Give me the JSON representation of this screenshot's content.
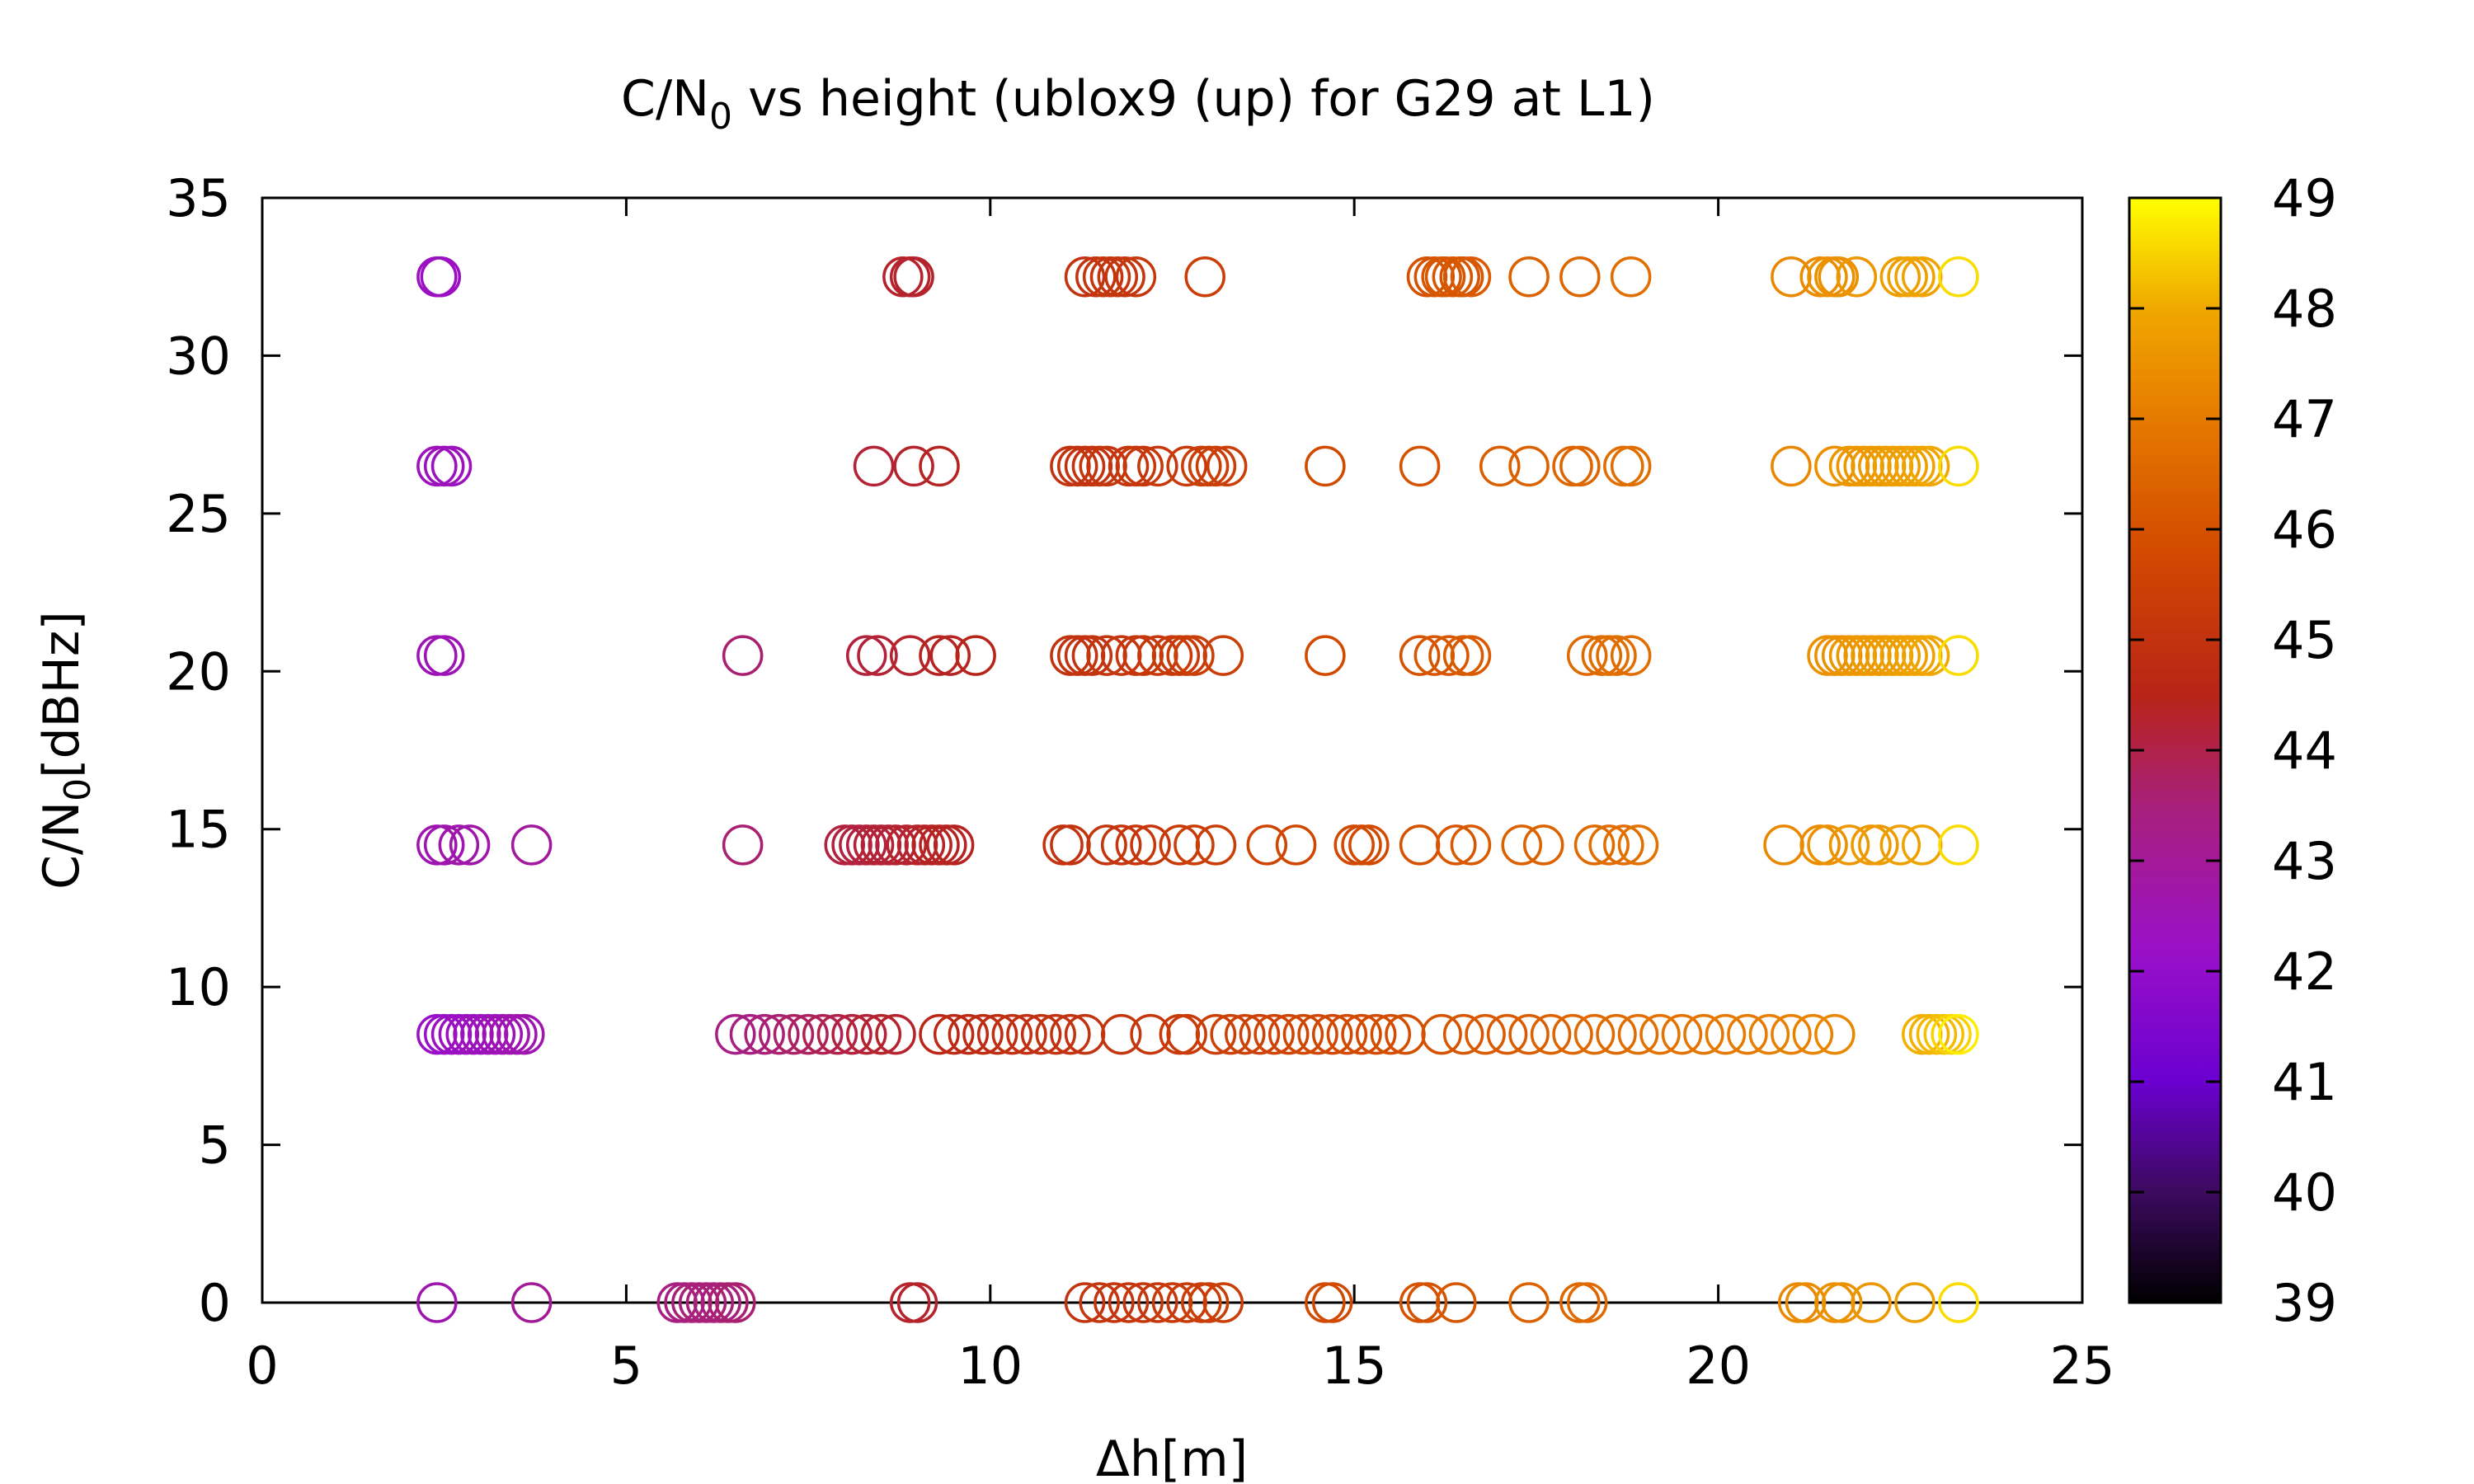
{
  "chart_data": {
    "type": "scatter",
    "title": {
      "pre": "C/N",
      "sub": "0",
      "post": " vs height (ublox9 (up) for G29 at L1)"
    },
    "xlabel": "Δh[m]",
    "ylabel": {
      "pre": "C/N",
      "sub": "0",
      "post": "[dBHz]"
    },
    "xlim": [
      0,
      25
    ],
    "ylim": [
      0,
      35
    ],
    "x_ticks": [
      0,
      5,
      10,
      15,
      20,
      25
    ],
    "y_ticks": [
      0,
      5,
      10,
      15,
      20,
      25,
      30,
      35
    ],
    "grid": false,
    "marker": "open-circle",
    "colorbar": {
      "range": [
        39,
        49
      ],
      "ticks": [
        39,
        40,
        41,
        42,
        43,
        44,
        45,
        46,
        47,
        48,
        49
      ],
      "palette": "black-purple-red-orange-yellow"
    },
    "points": [
      [
        2.4,
        32.5,
        42.3
      ],
      [
        2.45,
        32.5,
        42.3
      ],
      [
        8.8,
        32.5,
        44.3
      ],
      [
        8.9,
        32.5,
        44.3
      ],
      [
        8.95,
        32.5,
        44.3
      ],
      [
        11.3,
        32.5,
        45.0
      ],
      [
        11.45,
        32.5,
        45.0
      ],
      [
        11.55,
        32.5,
        45.1
      ],
      [
        11.65,
        32.5,
        45.1
      ],
      [
        11.75,
        32.5,
        45.1
      ],
      [
        11.85,
        32.5,
        45.1
      ],
      [
        12.0,
        32.5,
        45.2
      ],
      [
        12.95,
        32.5,
        45.4
      ],
      [
        16.0,
        32.5,
        46.0
      ],
      [
        16.1,
        32.5,
        46.0
      ],
      [
        16.2,
        32.5,
        46.1
      ],
      [
        16.25,
        32.5,
        46.1
      ],
      [
        16.35,
        32.5,
        46.1
      ],
      [
        16.45,
        32.5,
        46.1
      ],
      [
        16.5,
        32.5,
        46.1
      ],
      [
        16.6,
        32.5,
        46.2
      ],
      [
        17.4,
        32.5,
        46.4
      ],
      [
        18.1,
        32.5,
        46.5
      ],
      [
        18.8,
        32.5,
        46.7
      ],
      [
        21.0,
        32.5,
        47.3
      ],
      [
        21.4,
        32.5,
        47.4
      ],
      [
        21.5,
        32.5,
        47.5
      ],
      [
        21.6,
        32.5,
        47.5
      ],
      [
        21.65,
        32.5,
        47.5
      ],
      [
        21.9,
        32.5,
        47.6
      ],
      [
        22.5,
        32.5,
        47.8
      ],
      [
        22.6,
        32.5,
        47.8
      ],
      [
        22.7,
        32.5,
        47.9
      ],
      [
        22.8,
        32.5,
        47.9
      ],
      [
        23.3,
        32.5,
        48.6
      ],
      [
        2.4,
        26.5,
        42.4
      ],
      [
        2.5,
        26.5,
        42.4
      ],
      [
        2.6,
        26.5,
        42.4
      ],
      [
        8.4,
        26.5,
        44.2
      ],
      [
        8.95,
        26.5,
        44.3
      ],
      [
        9.3,
        26.5,
        44.4
      ],
      [
        11.1,
        26.5,
        45.0
      ],
      [
        11.2,
        26.5,
        45.0
      ],
      [
        11.3,
        26.5,
        45.0
      ],
      [
        11.4,
        26.5,
        45.0
      ],
      [
        11.5,
        26.5,
        45.1
      ],
      [
        11.6,
        26.5,
        45.1
      ],
      [
        11.9,
        26.5,
        45.1
      ],
      [
        12.0,
        26.5,
        45.2
      ],
      [
        12.1,
        26.5,
        45.2
      ],
      [
        12.3,
        26.5,
        45.2
      ],
      [
        12.7,
        26.5,
        45.3
      ],
      [
        12.9,
        26.5,
        45.4
      ],
      [
        13.0,
        26.5,
        45.4
      ],
      [
        13.1,
        26.5,
        45.4
      ],
      [
        13.25,
        26.5,
        45.4
      ],
      [
        14.6,
        26.5,
        45.8
      ],
      [
        15.9,
        26.5,
        46.0
      ],
      [
        17.0,
        26.5,
        46.3
      ],
      [
        17.4,
        26.5,
        46.4
      ],
      [
        18.0,
        26.5,
        46.5
      ],
      [
        18.1,
        26.5,
        46.5
      ],
      [
        18.7,
        26.5,
        46.7
      ],
      [
        18.8,
        26.5,
        46.7
      ],
      [
        21.0,
        26.5,
        47.3
      ],
      [
        21.6,
        26.5,
        47.5
      ],
      [
        21.8,
        26.5,
        47.6
      ],
      [
        21.9,
        26.5,
        47.6
      ],
      [
        22.0,
        26.5,
        47.6
      ],
      [
        22.1,
        26.5,
        47.7
      ],
      [
        22.2,
        26.5,
        47.7
      ],
      [
        22.3,
        26.5,
        47.7
      ],
      [
        22.4,
        26.5,
        47.8
      ],
      [
        22.5,
        26.5,
        47.8
      ],
      [
        22.6,
        26.5,
        47.8
      ],
      [
        22.7,
        26.5,
        47.9
      ],
      [
        22.8,
        26.5,
        47.9
      ],
      [
        22.9,
        26.5,
        48.0
      ],
      [
        23.3,
        26.5,
        48.6
      ],
      [
        2.4,
        20.5,
        42.5
      ],
      [
        2.5,
        20.5,
        42.5
      ],
      [
        6.6,
        20.5,
        43.6
      ],
      [
        8.3,
        20.5,
        44.1
      ],
      [
        8.45,
        20.5,
        44.2
      ],
      [
        8.9,
        20.5,
        44.3
      ],
      [
        9.3,
        20.5,
        44.4
      ],
      [
        9.45,
        20.5,
        44.4
      ],
      [
        9.8,
        20.5,
        44.5
      ],
      [
        11.1,
        20.5,
        45.0
      ],
      [
        11.2,
        20.5,
        45.0
      ],
      [
        11.3,
        20.5,
        45.0
      ],
      [
        11.4,
        20.5,
        45.0
      ],
      [
        11.6,
        20.5,
        45.1
      ],
      [
        11.8,
        20.5,
        45.1
      ],
      [
        12.0,
        20.5,
        45.2
      ],
      [
        12.1,
        20.5,
        45.2
      ],
      [
        12.3,
        20.5,
        45.2
      ],
      [
        12.5,
        20.5,
        45.3
      ],
      [
        12.6,
        20.5,
        45.3
      ],
      [
        12.7,
        20.5,
        45.3
      ],
      [
        12.8,
        20.5,
        45.4
      ],
      [
        13.2,
        20.5,
        45.4
      ],
      [
        14.6,
        20.5,
        45.8
      ],
      [
        15.9,
        20.5,
        46.0
      ],
      [
        16.1,
        20.5,
        46.1
      ],
      [
        16.3,
        20.5,
        46.1
      ],
      [
        16.5,
        20.5,
        46.2
      ],
      [
        16.6,
        20.5,
        46.2
      ],
      [
        18.2,
        20.5,
        46.6
      ],
      [
        18.4,
        20.5,
        46.6
      ],
      [
        18.5,
        20.5,
        46.7
      ],
      [
        18.6,
        20.5,
        46.7
      ],
      [
        18.8,
        20.5,
        46.7
      ],
      [
        21.5,
        20.5,
        47.5
      ],
      [
        21.6,
        20.5,
        47.5
      ],
      [
        21.7,
        20.5,
        47.5
      ],
      [
        21.8,
        20.5,
        47.6
      ],
      [
        21.9,
        20.5,
        47.6
      ],
      [
        22.0,
        20.5,
        47.6
      ],
      [
        22.1,
        20.5,
        47.7
      ],
      [
        22.2,
        20.5,
        47.7
      ],
      [
        22.3,
        20.5,
        47.7
      ],
      [
        22.4,
        20.5,
        47.8
      ],
      [
        22.5,
        20.5,
        47.8
      ],
      [
        22.6,
        20.5,
        47.8
      ],
      [
        22.7,
        20.5,
        47.9
      ],
      [
        22.8,
        20.5,
        47.9
      ],
      [
        22.9,
        20.5,
        48.0
      ],
      [
        23.3,
        20.5,
        48.6
      ],
      [
        2.4,
        14.5,
        42.6
      ],
      [
        2.5,
        14.5,
        42.6
      ],
      [
        2.7,
        14.5,
        42.7
      ],
      [
        2.85,
        14.5,
        42.7
      ],
      [
        3.7,
        14.5,
        42.9
      ],
      [
        6.6,
        14.5,
        43.6
      ],
      [
        8.0,
        14.5,
        44.1
      ],
      [
        8.1,
        14.5,
        44.1
      ],
      [
        8.2,
        14.5,
        44.1
      ],
      [
        8.3,
        14.5,
        44.1
      ],
      [
        8.4,
        14.5,
        44.2
      ],
      [
        8.5,
        14.5,
        44.2
      ],
      [
        8.6,
        14.5,
        44.2
      ],
      [
        8.7,
        14.5,
        44.2
      ],
      [
        8.85,
        14.5,
        44.3
      ],
      [
        9.0,
        14.5,
        44.3
      ],
      [
        9.1,
        14.5,
        44.3
      ],
      [
        9.2,
        14.5,
        44.4
      ],
      [
        9.3,
        14.5,
        44.4
      ],
      [
        9.4,
        14.5,
        44.4
      ],
      [
        9.5,
        14.5,
        44.4
      ],
      [
        11.0,
        14.5,
        45.0
      ],
      [
        11.1,
        14.5,
        45.0
      ],
      [
        11.6,
        14.5,
        45.1
      ],
      [
        11.8,
        14.5,
        45.1
      ],
      [
        12.0,
        14.5,
        45.2
      ],
      [
        12.2,
        14.5,
        45.2
      ],
      [
        12.6,
        14.5,
        45.3
      ],
      [
        12.8,
        14.5,
        45.4
      ],
      [
        13.1,
        14.5,
        45.4
      ],
      [
        13.8,
        14.5,
        45.6
      ],
      [
        14.2,
        14.5,
        45.7
      ],
      [
        15.0,
        14.5,
        45.8
      ],
      [
        15.1,
        14.5,
        45.8
      ],
      [
        15.2,
        14.5,
        45.8
      ],
      [
        15.9,
        14.5,
        46.0
      ],
      [
        16.4,
        14.5,
        46.1
      ],
      [
        16.6,
        14.5,
        46.2
      ],
      [
        17.3,
        14.5,
        46.4
      ],
      [
        17.6,
        14.5,
        46.4
      ],
      [
        18.3,
        14.5,
        46.6
      ],
      [
        18.5,
        14.5,
        46.7
      ],
      [
        18.7,
        14.5,
        46.7
      ],
      [
        18.9,
        14.5,
        46.8
      ],
      [
        20.9,
        14.5,
        47.3
      ],
      [
        21.4,
        14.5,
        47.4
      ],
      [
        21.5,
        14.5,
        47.5
      ],
      [
        21.8,
        14.5,
        47.6
      ],
      [
        22.1,
        14.5,
        47.7
      ],
      [
        22.2,
        14.5,
        47.7
      ],
      [
        22.5,
        14.5,
        47.8
      ],
      [
        22.8,
        14.5,
        47.9
      ],
      [
        23.3,
        14.5,
        48.6
      ],
      [
        2.4,
        8.5,
        42.2
      ],
      [
        2.5,
        8.5,
        42.2
      ],
      [
        2.6,
        8.5,
        42.3
      ],
      [
        2.7,
        8.5,
        42.3
      ],
      [
        2.8,
        8.5,
        42.3
      ],
      [
        2.9,
        8.5,
        42.4
      ],
      [
        3.0,
        8.5,
        42.4
      ],
      [
        3.1,
        8.5,
        42.4
      ],
      [
        3.2,
        8.5,
        42.5
      ],
      [
        3.3,
        8.5,
        42.5
      ],
      [
        3.4,
        8.5,
        42.6
      ],
      [
        3.5,
        8.5,
        42.6
      ],
      [
        3.6,
        8.5,
        42.6
      ],
      [
        6.5,
        8.5,
        43.3
      ],
      [
        6.7,
        8.5,
        43.4
      ],
      [
        6.9,
        8.5,
        43.5
      ],
      [
        7.1,
        8.5,
        43.6
      ],
      [
        7.3,
        8.5,
        43.7
      ],
      [
        7.5,
        8.5,
        43.8
      ],
      [
        7.7,
        8.5,
        43.9
      ],
      [
        7.9,
        8.5,
        44.0
      ],
      [
        8.1,
        8.5,
        44.1
      ],
      [
        8.3,
        8.5,
        44.2
      ],
      [
        8.5,
        8.5,
        44.3
      ],
      [
        8.7,
        8.5,
        44.3
      ],
      [
        9.3,
        8.5,
        44.6
      ],
      [
        9.5,
        8.5,
        44.7
      ],
      [
        9.7,
        8.5,
        44.7
      ],
      [
        9.9,
        8.5,
        44.8
      ],
      [
        10.1,
        8.5,
        44.8
      ],
      [
        10.3,
        8.5,
        44.9
      ],
      [
        10.5,
        8.5,
        44.9
      ],
      [
        10.7,
        8.5,
        44.9
      ],
      [
        10.9,
        8.5,
        45.0
      ],
      [
        11.1,
        8.5,
        45.0
      ],
      [
        11.3,
        8.5,
        45.0
      ],
      [
        11.8,
        8.5,
        45.1
      ],
      [
        12.2,
        8.5,
        45.2
      ],
      [
        12.6,
        8.5,
        45.3
      ],
      [
        12.7,
        8.5,
        45.3
      ],
      [
        13.1,
        8.5,
        45.4
      ],
      [
        13.3,
        8.5,
        45.5
      ],
      [
        13.5,
        8.5,
        45.5
      ],
      [
        13.7,
        8.5,
        45.5
      ],
      [
        13.9,
        8.5,
        45.6
      ],
      [
        14.1,
        8.5,
        45.6
      ],
      [
        14.3,
        8.5,
        45.7
      ],
      [
        14.5,
        8.5,
        45.7
      ],
      [
        14.7,
        8.5,
        45.7
      ],
      [
        14.9,
        8.5,
        45.8
      ],
      [
        15.1,
        8.5,
        45.8
      ],
      [
        15.3,
        8.5,
        45.8
      ],
      [
        15.5,
        8.5,
        45.9
      ],
      [
        15.7,
        8.5,
        45.9
      ],
      [
        16.2,
        8.5,
        46.0
      ],
      [
        16.5,
        8.5,
        46.1
      ],
      [
        16.8,
        8.5,
        46.2
      ],
      [
        17.1,
        8.5,
        46.2
      ],
      [
        17.4,
        8.5,
        46.3
      ],
      [
        17.7,
        8.5,
        46.4
      ],
      [
        18.0,
        8.5,
        46.5
      ],
      [
        18.3,
        8.5,
        46.6
      ],
      [
        18.6,
        8.5,
        46.6
      ],
      [
        18.9,
        8.5,
        46.7
      ],
      [
        19.2,
        8.5,
        46.8
      ],
      [
        19.5,
        8.5,
        46.8
      ],
      [
        19.8,
        8.5,
        46.9
      ],
      [
        20.1,
        8.5,
        47.0
      ],
      [
        20.4,
        8.5,
        47.0
      ],
      [
        20.7,
        8.5,
        47.1
      ],
      [
        21.0,
        8.5,
        47.1
      ],
      [
        21.3,
        8.5,
        47.2
      ],
      [
        21.6,
        8.5,
        47.3
      ],
      [
        22.8,
        8.5,
        48.1
      ],
      [
        22.9,
        8.5,
        48.1
      ],
      [
        23.0,
        8.5,
        48.2
      ],
      [
        23.1,
        8.5,
        48.3
      ],
      [
        23.2,
        8.5,
        48.5
      ],
      [
        23.3,
        8.5,
        48.8
      ],
      [
        2.4,
        0,
        42.6
      ],
      [
        3.7,
        0,
        43.0
      ],
      [
        5.7,
        0,
        43.4
      ],
      [
        5.8,
        0,
        43.4
      ],
      [
        5.9,
        0,
        43.5
      ],
      [
        6.0,
        0,
        43.5
      ],
      [
        6.1,
        0,
        43.5
      ],
      [
        6.2,
        0,
        43.5
      ],
      [
        6.3,
        0,
        43.5
      ],
      [
        6.4,
        0,
        43.6
      ],
      [
        6.5,
        0,
        43.6
      ],
      [
        8.9,
        0,
        44.3
      ],
      [
        9.0,
        0,
        44.3
      ],
      [
        11.3,
        0,
        45.0
      ],
      [
        11.5,
        0,
        45.1
      ],
      [
        11.7,
        0,
        45.1
      ],
      [
        11.9,
        0,
        45.1
      ],
      [
        12.1,
        0,
        45.2
      ],
      [
        12.3,
        0,
        45.2
      ],
      [
        12.5,
        0,
        45.3
      ],
      [
        12.7,
        0,
        45.3
      ],
      [
        12.9,
        0,
        45.4
      ],
      [
        13.0,
        0,
        45.4
      ],
      [
        13.2,
        0,
        45.4
      ],
      [
        14.6,
        0,
        45.8
      ],
      [
        14.7,
        0,
        45.8
      ],
      [
        15.9,
        0,
        46.0
      ],
      [
        16.0,
        0,
        46.0
      ],
      [
        16.4,
        0,
        46.1
      ],
      [
        17.4,
        0,
        46.4
      ],
      [
        18.1,
        0,
        46.5
      ],
      [
        18.2,
        0,
        46.6
      ],
      [
        21.1,
        0,
        47.3
      ],
      [
        21.2,
        0,
        47.4
      ],
      [
        21.6,
        0,
        47.5
      ],
      [
        21.7,
        0,
        47.5
      ],
      [
        22.1,
        0,
        47.6
      ],
      [
        22.7,
        0,
        47.8
      ],
      [
        23.3,
        0,
        48.6
      ]
    ]
  }
}
